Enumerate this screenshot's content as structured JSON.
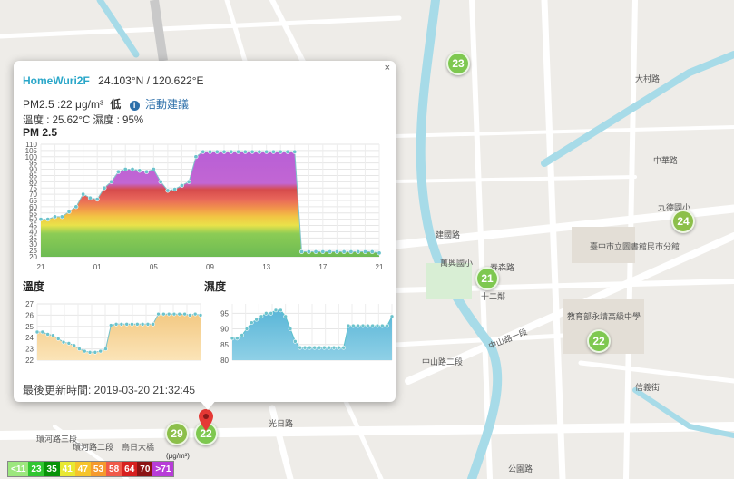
{
  "map": {
    "street_labels": [
      "環河路三段",
      "環河路二段",
      "中山路一段",
      "中山路二段",
      "建國路",
      "春森路",
      "公園路",
      "光日路",
      "中華路",
      "大村路",
      "信義街",
      "九德國小",
      "臺中市立圖書館民巿分館",
      "教育部永靖高級中學",
      "萬興國小",
      "鳥日大橋",
      "十二鄰",
      "十二線",
      "北屯路",
      "中壢路"
    ],
    "markers": [
      {
        "value": "23",
        "color": "#7ec850"
      },
      {
        "value": "24",
        "color": "#8cbf4a"
      },
      {
        "value": "21",
        "color": "#7ec850"
      },
      {
        "value": "22",
        "color": "#7ec850"
      },
      {
        "value": "29",
        "color": "#8cbf4a"
      },
      {
        "value": "22",
        "color": "#7ec850"
      }
    ]
  },
  "popup": {
    "close": "×",
    "station": "HomeWuri2F",
    "coords": "24.103°N / 120.622°E",
    "pm_text": "PM2.5 :22 μg/m³",
    "level": "低",
    "info_icon": "i",
    "advice": "活動建議",
    "temp_humidity": "溫度 : 25.62°C  濕度 : 95%",
    "pm_title": "PM 2.5",
    "temp_title": "溫度",
    "hum_title": "濕度",
    "updated": "最後更新時間: 2019-03-20 21:32:45"
  },
  "legend": {
    "unit": "(μg/m³)",
    "items": [
      {
        "label": "<11",
        "color": "#9ce77e"
      },
      {
        "label": "23",
        "color": "#31c631"
      },
      {
        "label": "35",
        "color": "#089308"
      },
      {
        "label": "41",
        "color": "#e8e832"
      },
      {
        "label": "47",
        "color": "#f6c42b"
      },
      {
        "label": "53",
        "color": "#f59a2d"
      },
      {
        "label": "58",
        "color": "#f05a4a"
      },
      {
        "label": "64",
        "color": "#d71f1f"
      },
      {
        "label": "70",
        "color": "#8c1414"
      },
      {
        "label": ">71",
        "color": "#b83cd8"
      }
    ]
  },
  "chart_data": [
    {
      "type": "area",
      "title": "PM 2.5",
      "x": [
        0,
        1,
        2,
        3,
        4,
        5,
        6,
        7,
        8,
        9,
        10,
        11,
        12,
        13,
        14,
        15,
        16,
        17,
        18,
        19,
        20,
        21,
        22,
        23,
        24,
        25,
        26,
        27,
        28,
        29,
        30,
        31,
        32,
        33,
        34,
        35,
        36,
        37,
        38,
        39,
        40,
        41,
        42,
        43,
        44,
        45,
        46,
        47,
        48
      ],
      "xticks": [
        "21",
        "01",
        "05",
        "09",
        "13",
        "17",
        "21"
      ],
      "values": [
        50,
        50,
        52,
        52,
        56,
        60,
        70,
        67,
        66,
        75,
        80,
        88,
        90,
        90,
        89,
        88,
        90,
        80,
        73,
        74,
        77,
        80,
        100,
        104,
        104,
        104,
        104,
        104,
        104,
        104,
        104,
        104,
        104,
        104,
        104,
        104,
        104,
        24,
        24,
        24,
        24,
        24,
        24,
        24,
        24,
        24,
        24,
        24,
        23
      ],
      "ylim": [
        20,
        110
      ],
      "yticks": [
        20,
        25,
        30,
        35,
        40,
        45,
        50,
        55,
        60,
        65,
        70,
        75,
        80,
        85,
        90,
        95,
        100,
        105,
        110
      ]
    },
    {
      "type": "area",
      "title": "溫度",
      "values": [
        24.5,
        24.5,
        24.3,
        24.2,
        23.9,
        23.6,
        23.5,
        23.3,
        23.0,
        22.8,
        22.7,
        22.7,
        22.8,
        23.0,
        25.1,
        25.2,
        25.2,
        25.2,
        25.2,
        25.2,
        25.2,
        25.2,
        25.2,
        26.1,
        26.1,
        26.1,
        26.1,
        26.1,
        26.1,
        26.0,
        26.1,
        26.0
      ],
      "ylim": [
        22,
        27
      ],
      "yticks": [
        22,
        23,
        24,
        25,
        26,
        27
      ]
    },
    {
      "type": "area",
      "title": "濕度",
      "values": [
        87,
        87,
        88,
        90,
        92,
        93,
        94,
        95,
        95,
        96,
        96,
        94,
        90,
        86,
        84,
        84,
        84,
        84,
        84,
        84,
        84,
        84,
        84,
        84,
        91,
        91,
        91,
        91,
        91,
        91,
        91,
        91,
        91,
        94
      ],
      "ylim": [
        80,
        98
      ],
      "yticks": [
        80,
        85,
        90,
        95
      ]
    }
  ]
}
